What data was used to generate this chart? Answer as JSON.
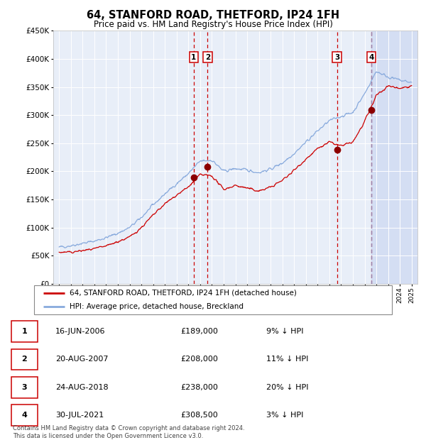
{
  "title": "64, STANFORD ROAD, THETFORD, IP24 1FH",
  "subtitle": "Price paid vs. HM Land Registry's House Price Index (HPI)",
  "ylim": [
    0,
    450000
  ],
  "yticks": [
    0,
    50000,
    100000,
    150000,
    200000,
    250000,
    300000,
    350000,
    400000,
    450000
  ],
  "ytick_labels": [
    "£0",
    "£50K",
    "£100K",
    "£150K",
    "£200K",
    "£250K",
    "£300K",
    "£350K",
    "£400K",
    "£450K"
  ],
  "xlim_start": 1994.5,
  "xlim_end": 2025.5,
  "plot_bg_color": "#e8eef8",
  "grid_color": "#ffffff",
  "hatch_color": "#c8d4f0",
  "sale_line_color": "#cc0000",
  "hpi_line_color": "#88aadd",
  "dot_color": "#8b0000",
  "vline_sale_color": "#cc0000",
  "vline_hpi_color": "#88aadd",
  "sales": [
    {
      "label": "1",
      "date_x": 2006.46,
      "price": 189000
    },
    {
      "label": "2",
      "date_x": 2007.64,
      "price": 208000
    },
    {
      "label": "3",
      "date_x": 2018.65,
      "price": 238000
    },
    {
      "label": "4",
      "date_x": 2021.58,
      "price": 308500
    }
  ],
  "legend_entries": [
    "64, STANFORD ROAD, THETFORD, IP24 1FH (detached house)",
    "HPI: Average price, detached house, Breckland"
  ],
  "table_rows": [
    {
      "num": "1",
      "date": "16-JUN-2006",
      "price": "£189,000",
      "hpi": "9% ↓ HPI"
    },
    {
      "num": "2",
      "date": "20-AUG-2007",
      "price": "£208,000",
      "hpi": "11% ↓ HPI"
    },
    {
      "num": "3",
      "date": "24-AUG-2018",
      "price": "£238,000",
      "hpi": "20% ↓ HPI"
    },
    {
      "num": "4",
      "date": "30-JUL-2021",
      "price": "£308,500",
      "hpi": "3% ↓ HPI"
    }
  ],
  "footer": "Contains HM Land Registry data © Crown copyright and database right 2024.\nThis data is licensed under the Open Government Licence v3.0.",
  "hatch_start": 2021.58,
  "hatch_end": 2025.5,
  "hpi_base": {
    "years": [
      1995,
      1996,
      1997,
      1998,
      1999,
      2000,
      2001,
      2002,
      2003,
      2004,
      2005,
      2006,
      2007,
      2008,
      2009,
      2010,
      2011,
      2012,
      2013,
      2014,
      2015,
      2016,
      2017,
      2018,
      2019,
      2020,
      2021,
      2022,
      2023,
      2024,
      2025
    ],
    "values": [
      65000,
      68000,
      72000,
      76000,
      82000,
      90000,
      100000,
      118000,
      140000,
      160000,
      178000,
      196000,
      218000,
      220000,
      200000,
      205000,
      202000,
      198000,
      204000,
      215000,
      232000,
      252000,
      272000,
      290000,
      298000,
      305000,
      338000,
      378000,
      368000,
      362000,
      358000
    ]
  },
  "sale_base": {
    "years": [
      1995,
      1996,
      1997,
      1998,
      1999,
      2000,
      2001,
      2002,
      2003,
      2004,
      2005,
      2006,
      2007,
      2008,
      2009,
      2010,
      2011,
      2012,
      2013,
      2014,
      2015,
      2016,
      2017,
      2018,
      2019,
      2020,
      2021,
      2022,
      2023,
      2024,
      2025
    ],
    "values": [
      56000,
      56000,
      59000,
      62000,
      67000,
      75000,
      83000,
      100000,
      122000,
      142000,
      158000,
      172000,
      194000,
      192000,
      168000,
      175000,
      170000,
      165000,
      172000,
      184000,
      202000,
      222000,
      240000,
      252000,
      245000,
      252000,
      288000,
      335000,
      352000,
      348000,
      352000
    ]
  }
}
